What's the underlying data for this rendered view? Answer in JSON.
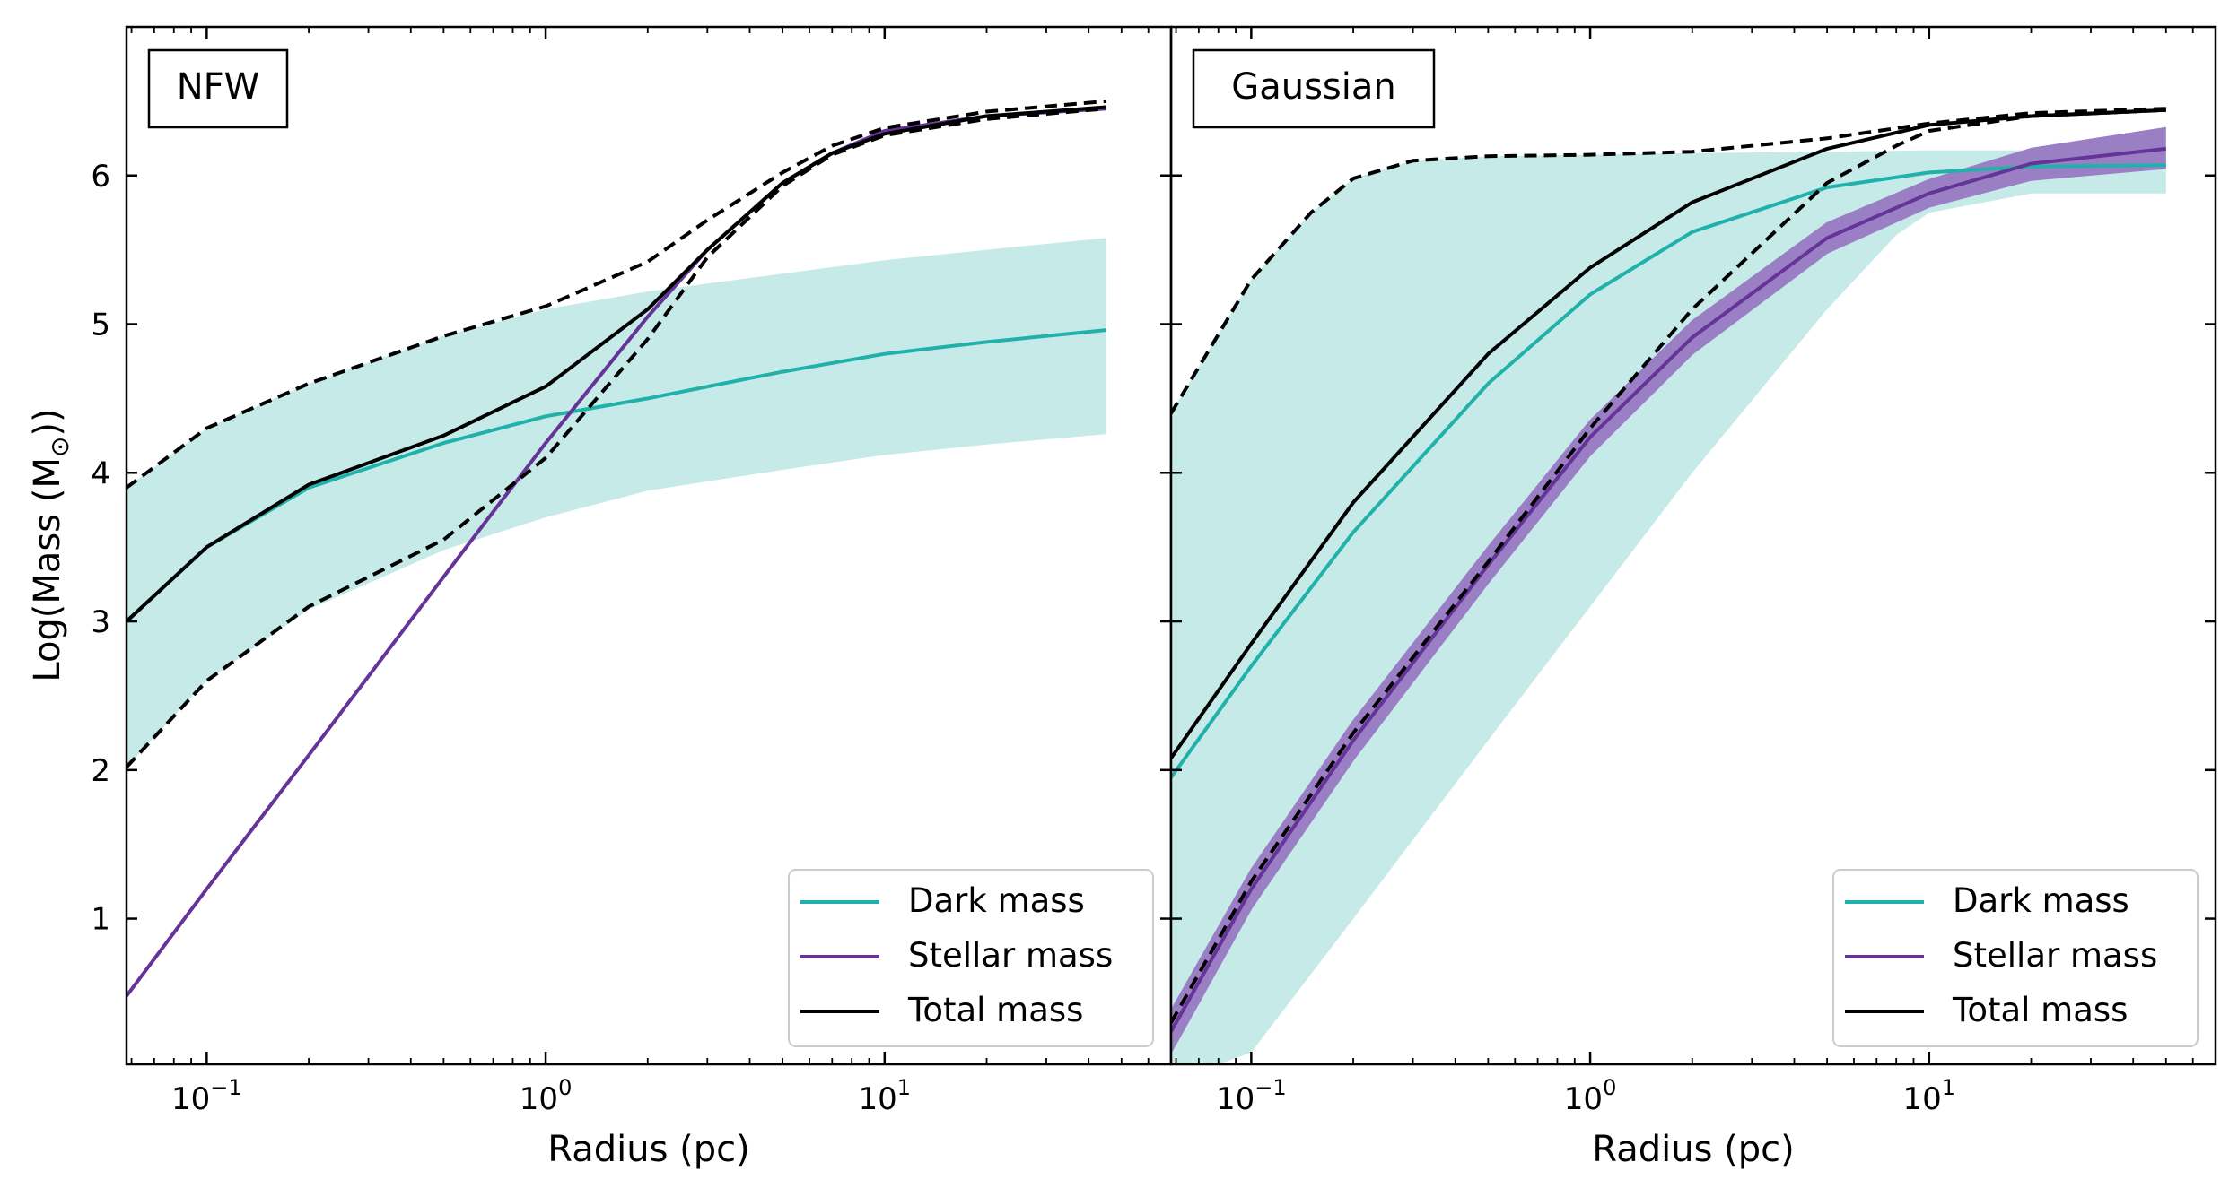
{
  "figure": {
    "ylabel": "Log(Mass (M",
    "ylabel_sub": "⊙",
    "ylabel_close": "))"
  },
  "colors": {
    "dark": "#20b2aa",
    "dark_band": "#c6eae8",
    "stellar": "#663399",
    "stellar_band": "#9b7fc4",
    "total": "#000000"
  },
  "chart_data": [
    {
      "type": "line",
      "panel_label": "NFW",
      "xlabel": "Radius (pc)",
      "xscale": "log",
      "xlim": [
        0.058,
        70
      ],
      "ylim": [
        0.02,
        7.0
      ],
      "xticks": [
        {
          "base": "10",
          "exp": "−1"
        },
        {
          "base": "10",
          "exp": "0"
        },
        {
          "base": "10",
          "exp": "1"
        }
      ],
      "yticks": [
        "1",
        "2",
        "3",
        "4",
        "5",
        "6"
      ],
      "legend": [
        "Dark mass",
        "Stellar mass",
        "Total mass"
      ],
      "legend_loc": "lower right",
      "series": [
        {
          "name": "Dark mass band upper",
          "x": [
            0.058,
            0.1,
            0.2,
            0.5,
            1,
            2,
            5,
            10,
            20,
            45
          ],
          "y": [
            3.9,
            4.3,
            4.6,
            4.92,
            5.1,
            5.22,
            5.34,
            5.43,
            5.5,
            5.58
          ]
        },
        {
          "name": "Dark mass band lower",
          "x": [
            0.058,
            0.1,
            0.2,
            0.5,
            1,
            2,
            5,
            10,
            20,
            45
          ],
          "y": [
            2.02,
            2.6,
            3.08,
            3.48,
            3.7,
            3.88,
            4.02,
            4.12,
            4.19,
            4.26
          ]
        },
        {
          "name": "Dark mass",
          "x": [
            0.058,
            0.1,
            0.2,
            0.5,
            1,
            2,
            5,
            10,
            20,
            45
          ],
          "y": [
            3.0,
            3.5,
            3.9,
            4.2,
            4.38,
            4.5,
            4.68,
            4.8,
            4.88,
            4.96
          ]
        },
        {
          "name": "Stellar mass",
          "x": [
            0.058,
            0.1,
            0.2,
            0.5,
            1,
            2,
            3,
            5,
            7,
            10,
            20,
            45
          ],
          "y": [
            0.48,
            1.2,
            2.1,
            3.3,
            4.2,
            5.05,
            5.5,
            5.95,
            6.15,
            6.3,
            6.4,
            6.45
          ]
        },
        {
          "name": "Total mass",
          "x": [
            0.058,
            0.1,
            0.2,
            0.5,
            1,
            2,
            3,
            5,
            7,
            10,
            20,
            45
          ],
          "y": [
            3.0,
            3.5,
            3.92,
            4.25,
            4.58,
            5.1,
            5.5,
            5.95,
            6.15,
            6.28,
            6.4,
            6.46
          ]
        },
        {
          "name": "Total mass upper",
          "x": [
            0.058,
            0.1,
            0.2,
            0.5,
            1,
            2,
            3,
            5,
            7,
            10,
            20,
            45
          ],
          "y": [
            3.9,
            4.3,
            4.6,
            4.92,
            5.12,
            5.42,
            5.7,
            6.02,
            6.2,
            6.32,
            6.43,
            6.5
          ]
        },
        {
          "name": "Total mass lower",
          "x": [
            0.058,
            0.1,
            0.2,
            0.5,
            1,
            2,
            3,
            5,
            7,
            10,
            20,
            45
          ],
          "y": [
            2.02,
            2.6,
            3.1,
            3.55,
            4.1,
            4.9,
            5.45,
            5.93,
            6.14,
            6.27,
            6.38,
            6.45
          ]
        }
      ]
    },
    {
      "type": "line",
      "panel_label": "Gaussian",
      "xlabel": "Radius (pc)",
      "xscale": "log",
      "xlim": [
        0.058,
        70
      ],
      "ylim": [
        0.02,
        7.0
      ],
      "xticks": [
        {
          "base": "10",
          "exp": "−1"
        },
        {
          "base": "10",
          "exp": "0"
        },
        {
          "base": "10",
          "exp": "1"
        }
      ],
      "yticks": [
        "1",
        "2",
        "3",
        "4",
        "5",
        "6"
      ],
      "legend": [
        "Dark mass",
        "Stellar mass",
        "Total mass"
      ],
      "legend_loc": "lower right",
      "series": [
        {
          "name": "Dark mass band upper",
          "x": [
            0.058,
            0.1,
            0.15,
            0.2,
            0.3,
            0.5,
            1,
            2,
            5,
            10,
            50
          ],
          "y": [
            4.4,
            5.3,
            5.75,
            5.98,
            6.1,
            6.13,
            6.14,
            6.15,
            6.16,
            6.17,
            6.17
          ]
        },
        {
          "name": "Dark mass band lower",
          "x": [
            0.058,
            0.08,
            0.1,
            0.2,
            0.5,
            1,
            2,
            5,
            8,
            10,
            20,
            50
          ],
          "y": [
            0.02,
            0.02,
            0.1,
            1.0,
            2.2,
            3.1,
            4.0,
            5.1,
            5.6,
            5.75,
            5.88,
            5.88
          ]
        },
        {
          "name": "Dark mass",
          "x": [
            0.058,
            0.1,
            0.2,
            0.5,
            1,
            2,
            5,
            10,
            20,
            50
          ],
          "y": [
            1.95,
            2.7,
            3.6,
            4.6,
            5.2,
            5.62,
            5.92,
            6.02,
            6.06,
            6.07
          ]
        },
        {
          "name": "Total mass",
          "x": [
            0.058,
            0.1,
            0.2,
            0.5,
            1,
            2,
            5,
            10,
            20,
            50
          ],
          "y": [
            2.08,
            2.85,
            3.8,
            4.8,
            5.38,
            5.82,
            6.18,
            6.34,
            6.4,
            6.44
          ]
        },
        {
          "name": "Total mass upper",
          "x": [
            0.058,
            0.1,
            0.15,
            0.2,
            0.3,
            0.5,
            1,
            2,
            5,
            10,
            20,
            50
          ],
          "y": [
            4.4,
            5.3,
            5.75,
            5.98,
            6.1,
            6.13,
            6.14,
            6.16,
            6.25,
            6.35,
            6.42,
            6.45
          ]
        },
        {
          "name": "Total mass lower",
          "x": [
            0.058,
            0.1,
            0.2,
            0.5,
            1,
            2,
            5,
            8,
            10,
            20,
            50
          ],
          "y": [
            0.3,
            1.25,
            2.25,
            3.4,
            4.3,
            5.1,
            5.95,
            6.2,
            6.3,
            6.4,
            6.44
          ]
        },
        {
          "name": "Stellar mass band upper",
          "x": [
            0.058,
            0.1,
            0.2,
            0.5,
            1,
            2,
            5,
            10,
            20,
            50
          ],
          "y": [
            0.38,
            1.33,
            2.33,
            3.5,
            4.35,
            5.02,
            5.68,
            5.97,
            6.18,
            6.32
          ]
        },
        {
          "name": "Stellar mass band lower",
          "x": [
            0.058,
            0.1,
            0.2,
            0.5,
            1,
            2,
            5,
            10,
            20,
            50
          ],
          "y": [
            0.1,
            1.07,
            2.07,
            3.26,
            4.12,
            4.8,
            5.48,
            5.79,
            5.97,
            6.05
          ]
        },
        {
          "name": "Stellar mass",
          "x": [
            0.058,
            0.1,
            0.2,
            0.5,
            1,
            2,
            5,
            10,
            20,
            50
          ],
          "y": [
            0.24,
            1.2,
            2.2,
            3.38,
            4.24,
            4.91,
            5.58,
            5.88,
            6.08,
            6.18
          ]
        }
      ]
    }
  ]
}
